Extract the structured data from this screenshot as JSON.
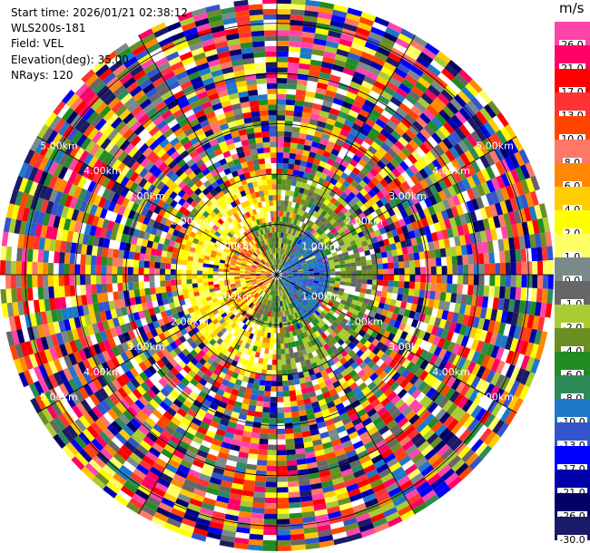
{
  "header": {
    "start_time": "Start time: 2026/01/21 02:38:12",
    "station": "WLS200s-181",
    "field": "Field: VEL",
    "elevation": "Elevation(deg): 35.00",
    "nrays": "NRays: 120"
  },
  "colorbar": {
    "unit": "m/s",
    "levels": [
      {
        "label": "26.0",
        "color": "#ff44aa"
      },
      {
        "label": "21.0",
        "color": "#ff0066"
      },
      {
        "label": "17.0",
        "color": "#ff0000"
      },
      {
        "label": "13.0",
        "color": "#ff3333"
      },
      {
        "label": "10.0",
        "color": "#ff4400"
      },
      {
        "label": "8.0",
        "color": "#ff7766"
      },
      {
        "label": "6.0",
        "color": "#ff8800"
      },
      {
        "label": "4.0",
        "color": "#ffcc00"
      },
      {
        "label": "2.0",
        "color": "#ffff00"
      },
      {
        "label": "1.0",
        "color": "#ffff66"
      },
      {
        "label": "0.0",
        "color": "#7a8a8a"
      },
      {
        "label": "-1.0",
        "color": "#666666"
      },
      {
        "label": "-2.0",
        "color": "#aacc33"
      },
      {
        "label": "-4.0",
        "color": "#6b8e23"
      },
      {
        "label": "-6.0",
        "color": "#228b22"
      },
      {
        "label": "-8.0",
        "color": "#2e8b57"
      },
      {
        "label": "-10.0",
        "color": "#1e78c8"
      },
      {
        "label": "-13.0",
        "color": "#3355cc"
      },
      {
        "label": "-17.0",
        "color": "#0000ff"
      },
      {
        "label": "-21.0",
        "color": "#0000aa"
      },
      {
        "label": "-26.0",
        "color": "#000066"
      },
      {
        "label": "-30.0",
        "color": "#1a1a66"
      }
    ]
  },
  "range_rings": {
    "labels": [
      "1.00km",
      "2.00km",
      "3.00km",
      "4.00km",
      "5.00km"
    ],
    "km": [
      1,
      2,
      3,
      4,
      5
    ]
  }
}
